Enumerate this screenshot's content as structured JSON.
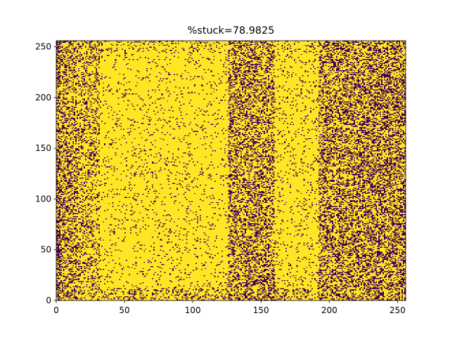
{
  "chart_data": {
    "type": "heatmap",
    "title": "%stuck=78.9825",
    "xlabel": "",
    "ylabel": "",
    "grid_size": [
      256,
      256
    ],
    "xlim": [
      0,
      256
    ],
    "ylim": [
      0,
      256
    ],
    "x_ticks": [
      0,
      50,
      100,
      150,
      200,
      250
    ],
    "y_ticks": [
      0,
      50,
      100,
      150,
      200,
      250
    ],
    "x_tick_labels": [
      "0",
      "50",
      "100",
      "150",
      "200",
      "250"
    ],
    "y_tick_labels": [
      "0",
      "50",
      "100",
      "150",
      "200",
      "250"
    ],
    "stuck_percent": 78.9825,
    "colormap": "viridis",
    "colors": {
      "stuck": "#fde725",
      "not_stuck": "#440154"
    },
    "column_stuck_fraction": [
      {
        "x_range": [
          0,
          3
        ],
        "fraction": 0.45
      },
      {
        "x_range": [
          3,
          15
        ],
        "fraction": 0.62
      },
      {
        "x_range": [
          15,
          32
        ],
        "fraction": 0.74
      },
      {
        "x_range": [
          32,
          126
        ],
        "fraction": 0.93
      },
      {
        "x_range": [
          126,
          160
        ],
        "fraction": 0.62
      },
      {
        "x_range": [
          160,
          192
        ],
        "fraction": 0.92
      },
      {
        "x_range": [
          192,
          228
        ],
        "fraction": 0.6
      },
      {
        "x_range": [
          228,
          256
        ],
        "fraction": 0.55
      }
    ],
    "row_edge_stuck_fraction": [
      {
        "y_range": [
          0,
          12
        ],
        "fraction": 0.6
      },
      {
        "y_range": [
          244,
          256
        ],
        "fraction": 0.7
      }
    ]
  }
}
